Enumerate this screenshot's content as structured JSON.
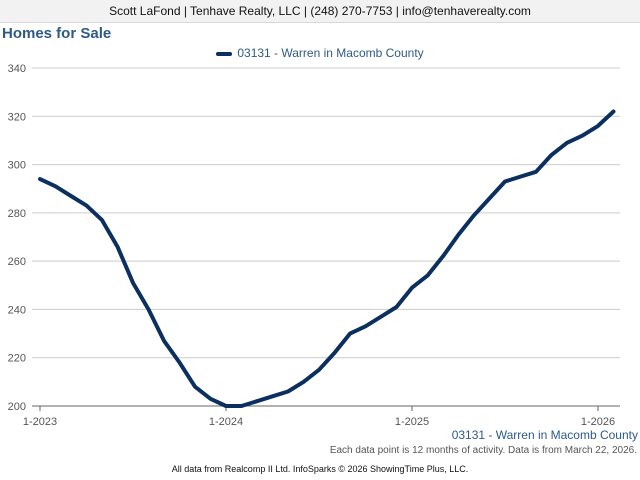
{
  "header": {
    "contact": "Scott LaFond | Tenhave Realty, LLC | (248) 270-7753 | info@tenhaverealty.com"
  },
  "chart_title": "Homes for Sale",
  "series_label": "03131 - Warren in Macomb County",
  "note": "Each data point is 12 months of activity. Data is from March 22, 2026.",
  "footer": "All data from Realcomp II Ltd. InfoSparks © 2026 ShowingTime Plus, LLC.",
  "colors": {
    "series": "#0b3060",
    "title": "#2e5a88",
    "grid": "#cccccc"
  },
  "chart_data": {
    "type": "line",
    "title": "Homes for Sale",
    "xlabel": "",
    "ylabel": "",
    "ylim": [
      200,
      340
    ],
    "yticks": [
      200,
      220,
      240,
      260,
      280,
      300,
      320,
      340
    ],
    "xticks": [
      "1-2023",
      "1-2024",
      "1-2025",
      "1-2026"
    ],
    "grid": true,
    "legend": "top-center",
    "x": [
      "1-2023",
      "2-2023",
      "3-2023",
      "4-2023",
      "5-2023",
      "6-2023",
      "7-2023",
      "8-2023",
      "9-2023",
      "10-2023",
      "11-2023",
      "12-2023",
      "1-2024",
      "2-2024",
      "3-2024",
      "4-2024",
      "5-2024",
      "6-2024",
      "7-2024",
      "8-2024",
      "9-2024",
      "10-2024",
      "11-2024",
      "12-2024",
      "1-2025",
      "2-2025",
      "3-2025",
      "4-2025",
      "5-2025",
      "6-2025",
      "7-2025",
      "8-2025",
      "9-2025",
      "10-2025",
      "11-2025",
      "12-2025",
      "1-2026",
      "2-2026"
    ],
    "series": [
      {
        "name": "03131 - Warren in Macomb County",
        "values": [
          294,
          291,
          287,
          283,
          277,
          266,
          251,
          240,
          227,
          218,
          208,
          203,
          200,
          200,
          202,
          204,
          206,
          210,
          215,
          222,
          230,
          233,
          237,
          241,
          249,
          254,
          262,
          271,
          279,
          286,
          293,
          295,
          297,
          304,
          309,
          312,
          316,
          322
        ]
      }
    ]
  }
}
